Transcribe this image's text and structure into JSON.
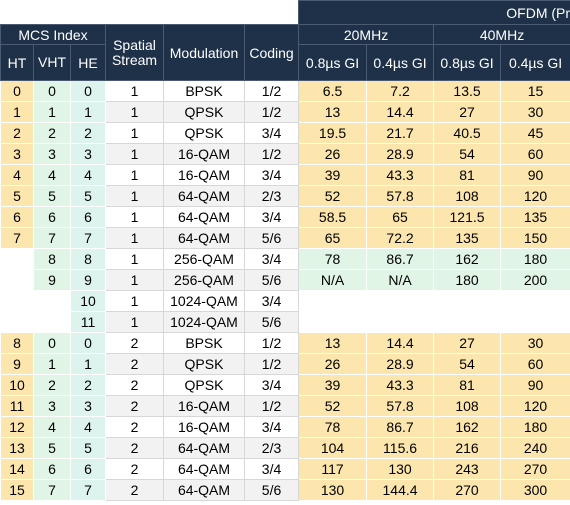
{
  "header": {
    "group": "OFDM (Pr",
    "mcs_index": "MCS Index",
    "spatial_stream": "Spatial Stream",
    "modulation": "Modulation",
    "coding": "Coding",
    "bandwidths": [
      "20MHz",
      "40MHz"
    ],
    "index_columns": [
      "HT",
      "VHT",
      "HE"
    ],
    "gi": [
      "0.8µs GI",
      "0.4µs GI",
      "0.8µs GI",
      "0.4µs GI"
    ]
  },
  "table": {
    "rows": [
      [
        "0",
        "0",
        "0",
        "1",
        "BPSK",
        "1/2",
        "6.5",
        "7.2",
        "13.5",
        "15"
      ],
      [
        "1",
        "1",
        "1",
        "1",
        "QPSK",
        "1/2",
        "13",
        "14.4",
        "27",
        "30"
      ],
      [
        "2",
        "2",
        "2",
        "1",
        "QPSK",
        "3/4",
        "19.5",
        "21.7",
        "40.5",
        "45"
      ],
      [
        "3",
        "3",
        "3",
        "1",
        "16-QAM",
        "1/2",
        "26",
        "28.9",
        "54",
        "60"
      ],
      [
        "4",
        "4",
        "4",
        "1",
        "16-QAM",
        "3/4",
        "39",
        "43.3",
        "81",
        "90"
      ],
      [
        "5",
        "5",
        "5",
        "1",
        "64-QAM",
        "2/3",
        "52",
        "57.8",
        "108",
        "120"
      ],
      [
        "6",
        "6",
        "6",
        "1",
        "64-QAM",
        "3/4",
        "58.5",
        "65",
        "121.5",
        "135"
      ],
      [
        "7",
        "7",
        "7",
        "1",
        "64-QAM",
        "5/6",
        "65",
        "72.2",
        "135",
        "150"
      ],
      [
        null,
        "8",
        "8",
        "1",
        "256-QAM",
        "3/4",
        "78",
        "86.7",
        "162",
        "180"
      ],
      [
        null,
        "9",
        "9",
        "1",
        "256-QAM",
        "5/6",
        "N/A",
        "N/A",
        "180",
        "200"
      ],
      [
        null,
        null,
        "10",
        "1",
        "1024-QAM",
        "3/4",
        null,
        null,
        null,
        null
      ],
      [
        null,
        null,
        "11",
        "1",
        "1024-QAM",
        "5/6",
        null,
        null,
        null,
        null
      ],
      [
        "8",
        "0",
        "0",
        "2",
        "BPSK",
        "1/2",
        "13",
        "14.4",
        "27",
        "30"
      ],
      [
        "9",
        "1",
        "1",
        "2",
        "QPSK",
        "1/2",
        "26",
        "28.9",
        "54",
        "60"
      ],
      [
        "10",
        "2",
        "2",
        "2",
        "QPSK",
        "3/4",
        "39",
        "43.3",
        "81",
        "90"
      ],
      [
        "11",
        "3",
        "3",
        "2",
        "16-QAM",
        "1/2",
        "52",
        "57.8",
        "108",
        "120"
      ],
      [
        "12",
        "4",
        "4",
        "2",
        "16-QAM",
        "3/4",
        "78",
        "86.7",
        "162",
        "180"
      ],
      [
        "13",
        "5",
        "5",
        "2",
        "64-QAM",
        "2/3",
        "104",
        "115.6",
        "216",
        "240"
      ],
      [
        "14",
        "6",
        "6",
        "2",
        "64-QAM",
        "3/4",
        "117",
        "130",
        "243",
        "270"
      ],
      [
        "15",
        "7",
        "7",
        "2",
        "64-QAM",
        "5/6",
        "130",
        "144.4",
        "270",
        "300"
      ]
    ]
  }
}
